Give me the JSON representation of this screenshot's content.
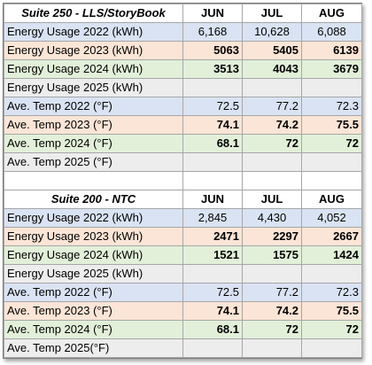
{
  "tables": [
    {
      "title": "Suite 250 - LLS/StoryBook",
      "months": [
        "JUN",
        "JUL",
        "AUG"
      ],
      "rows": [
        {
          "label": "Energy Usage 2022 (kWh)",
          "values": [
            "6,168",
            "10,628",
            "6,088"
          ]
        },
        {
          "label": "Energy Usage 2023 (kWh)",
          "values": [
            "5063",
            "5405",
            "6139"
          ]
        },
        {
          "label": "Energy Usage 2024 (kWh)",
          "values": [
            "3513",
            "4043",
            "3679"
          ]
        },
        {
          "label": "Energy Usage 2025 (kWh)",
          "values": [
            "",
            "",
            ""
          ]
        },
        {
          "label": "Ave. Temp 2022 (°F)",
          "values": [
            "72.5",
            "77.2",
            "72.3"
          ]
        },
        {
          "label": "Ave. Temp 2023 (°F)",
          "values": [
            "74.1",
            "74.2",
            "75.5"
          ]
        },
        {
          "label": "Ave. Temp 2024  (°F)",
          "values": [
            "68.1",
            "72",
            "72"
          ]
        },
        {
          "label": "Ave. Temp 2025 (°F)",
          "values": [
            "",
            "",
            ""
          ]
        }
      ]
    },
    {
      "title": "Suite 200 - NTC",
      "months": [
        "JUN",
        "JUL",
        "AUG"
      ],
      "rows": [
        {
          "label": "Energy Usage 2022 (kWh)",
          "values": [
            "2,845",
            "4,430",
            "4,052"
          ]
        },
        {
          "label": "Energy Usage 2023 (kWh)",
          "values": [
            "2471",
            "2297",
            "2667"
          ]
        },
        {
          "label": "Energy Usage 2024 (kWh)",
          "values": [
            "1521",
            "1575",
            "1424"
          ]
        },
        {
          "label": "Energy Usage 2025 (kWh)",
          "values": [
            "",
            "",
            ""
          ]
        },
        {
          "label": "Ave. Temp 2022 (°F)",
          "values": [
            "72.5",
            "77.2",
            "72.3"
          ]
        },
        {
          "label": "Ave. Temp 2023 (°F)",
          "values": [
            "74.1",
            "74.2",
            "75.5"
          ]
        },
        {
          "label": "Ave. Temp 2024  (°F)",
          "values": [
            "68.1",
            "72",
            "72"
          ]
        },
        {
          "label": "Ave. Temp 2025(°F)",
          "values": [
            "",
            "",
            ""
          ]
        }
      ]
    }
  ],
  "colors": {
    "row_2022": "#dae3f3",
    "row_2023": "#fbe5d6",
    "row_2024": "#e2f0d9",
    "row_2025": "#ededed"
  }
}
